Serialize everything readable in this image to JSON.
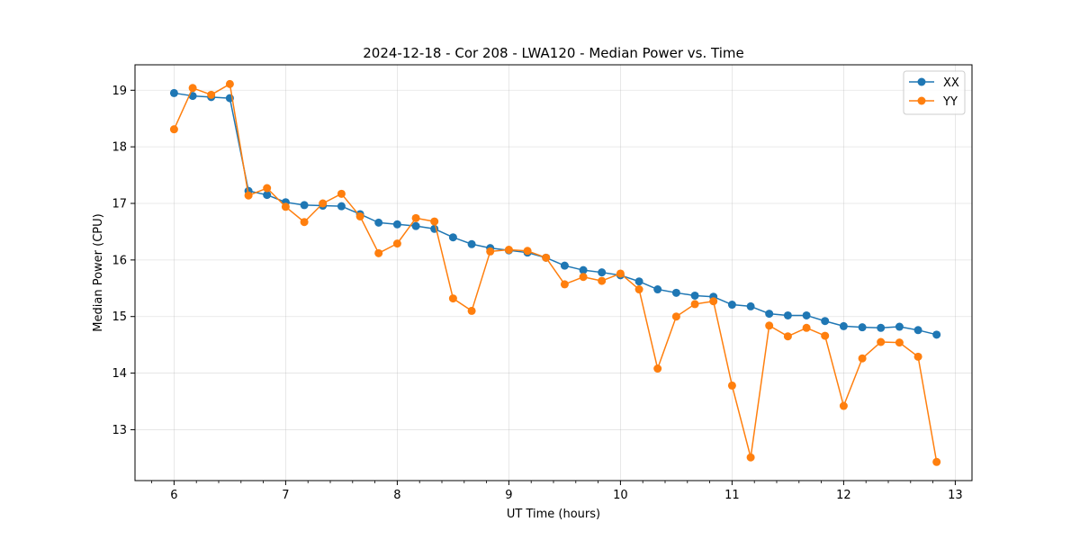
{
  "chart_data": {
    "type": "line",
    "title": "2024-12-18 - Cor 208 - LWA120 - Median Power vs. Time",
    "xlabel": "UT Time (hours)",
    "ylabel": "Median Power (CPU)",
    "xlim": [
      5.65,
      13.15
    ],
    "ylim": [
      12.1,
      19.45
    ],
    "xticks": [
      6,
      7,
      8,
      9,
      10,
      11,
      12,
      13
    ],
    "yticks": [
      13,
      14,
      15,
      16,
      17,
      18,
      19
    ],
    "grid": true,
    "legend_position": "top-right",
    "x": [
      6.0,
      6.167,
      6.333,
      6.5,
      6.667,
      6.833,
      7.0,
      7.167,
      7.333,
      7.5,
      7.667,
      7.833,
      8.0,
      8.167,
      8.333,
      8.5,
      8.667,
      8.833,
      9.0,
      9.167,
      9.333,
      9.5,
      9.667,
      9.833,
      10.0,
      10.167,
      10.333,
      10.5,
      10.667,
      10.833,
      11.0,
      11.167,
      11.333,
      11.5,
      11.667,
      11.833,
      12.0,
      12.167,
      12.333,
      12.5,
      12.667,
      12.833
    ],
    "series": [
      {
        "name": "XX",
        "color": "#1f77b4",
        "values": [
          18.95,
          18.9,
          18.88,
          18.86,
          17.22,
          17.15,
          17.02,
          16.97,
          16.96,
          16.95,
          16.81,
          16.66,
          16.63,
          16.6,
          16.55,
          16.4,
          16.28,
          16.21,
          16.17,
          16.13,
          16.04,
          15.9,
          15.82,
          15.78,
          15.73,
          15.62,
          15.48,
          15.42,
          15.37,
          15.35,
          15.21,
          15.18,
          15.05,
          15.02,
          15.02,
          14.92,
          14.83,
          14.81,
          14.8,
          14.82,
          14.76,
          14.68
        ]
      },
      {
        "name": "YY",
        "color": "#ff7f0e",
        "values": [
          18.31,
          19.04,
          18.92,
          19.11,
          17.14,
          17.27,
          16.94,
          16.67,
          17.0,
          17.17,
          16.77,
          16.12,
          16.29,
          16.74,
          16.68,
          15.32,
          15.1,
          16.15,
          16.18,
          16.16,
          16.04,
          15.57,
          15.7,
          15.63,
          15.76,
          15.48,
          14.08,
          15.0,
          15.22,
          15.27,
          13.78,
          12.51,
          14.84,
          14.65,
          14.8,
          14.66,
          13.42,
          14.26,
          14.55,
          14.54,
          14.29,
          12.43
        ]
      }
    ]
  }
}
